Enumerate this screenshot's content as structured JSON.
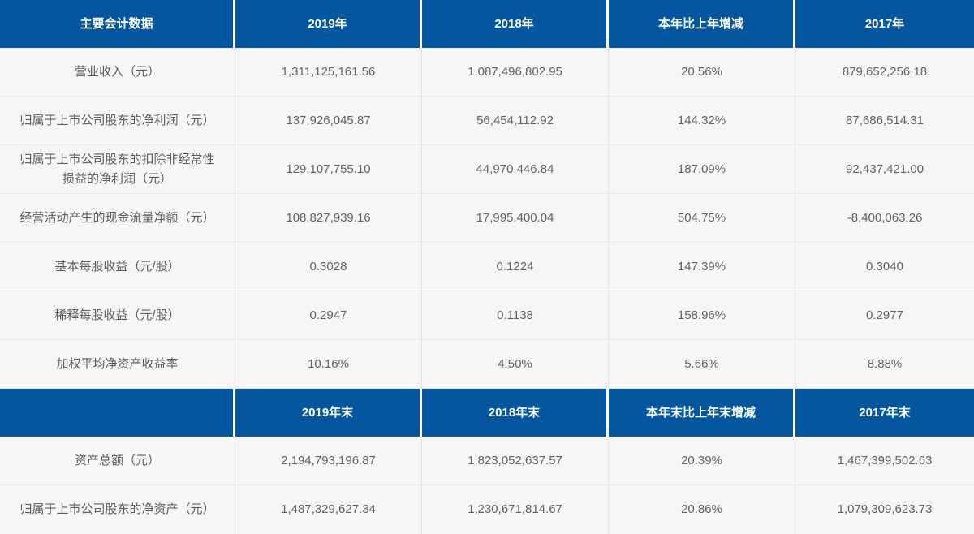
{
  "colors": {
    "header_bg": "#04569e",
    "header_text": "#ffffff",
    "row_bg": "#f6f6f6",
    "row_text": "#616161",
    "divider": "#e3e3e3"
  },
  "section1": {
    "headers": [
      "主要会计数据",
      "2019年",
      "2018年",
      "本年比上年增减",
      "2017年"
    ],
    "rows": [
      {
        "label": "营业收入（元）",
        "v2019": "1,311,125,161.56",
        "v2018": "1,087,496,802.95",
        "change": "20.56%",
        "v2017": "879,652,256.18"
      },
      {
        "label": "归属于上市公司股东的净利润（元）",
        "v2019": "137,926,045.87",
        "v2018": "56,454,112.92",
        "change": "144.32%",
        "v2017": "87,686,514.31"
      },
      {
        "label": "归属于上市公司股东的扣除非经常性损益的净利润（元）",
        "v2019": "129,107,755.10",
        "v2018": "44,970,446.84",
        "change": "187.09%",
        "v2017": "92,437,421.00"
      },
      {
        "label": "经营活动产生的现金流量净额（元）",
        "v2019": "108,827,939.16",
        "v2018": "17,995,400.04",
        "change": "504.75%",
        "v2017": "-8,400,063.26"
      },
      {
        "label": "基本每股收益（元/股）",
        "v2019": "0.3028",
        "v2018": "0.1224",
        "change": "147.39%",
        "v2017": "0.3040"
      },
      {
        "label": "稀释每股收益（元/股）",
        "v2019": "0.2947",
        "v2018": "0.1138",
        "change": "158.96%",
        "v2017": "0.2977"
      },
      {
        "label": "加权平均净资产收益率",
        "v2019": "10.16%",
        "v2018": "4.50%",
        "change": "5.66%",
        "v2017": "8.88%"
      }
    ]
  },
  "section2": {
    "headers": [
      "",
      "2019年末",
      "2018年末",
      "本年末比上年末增减",
      "2017年末"
    ],
    "rows": [
      {
        "label": "资产总额（元）",
        "v2019": "2,194,793,196.87",
        "v2018": "1,823,052,637.57",
        "change": "20.39%",
        "v2017": "1,467,399,502.63"
      },
      {
        "label": "归属于上市公司股东的净资产（元）",
        "v2019": "1,487,329,627.34",
        "v2018": "1,230,671,814.67",
        "change": "20.86%",
        "v2017": "1,079,309,623.73"
      }
    ]
  }
}
